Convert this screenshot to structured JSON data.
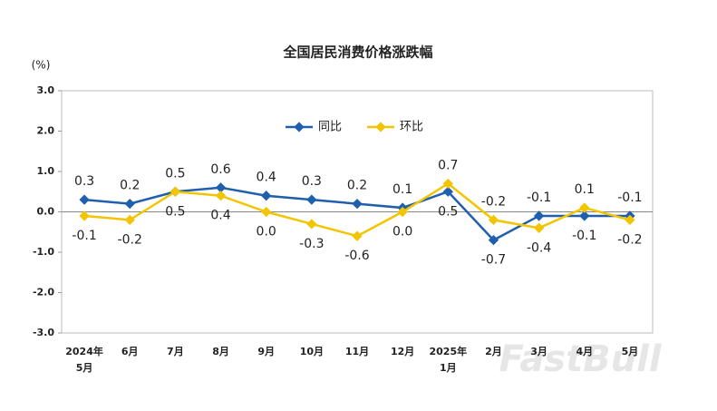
{
  "chart_data": {
    "type": "line",
    "title": "全国居民消费价格涨跌幅",
    "y_unit": "(%)",
    "categories": [
      "2024年\n5月",
      "6月",
      "7月",
      "8月",
      "9月",
      "10月",
      "11月",
      "12月",
      "2025年\n1月",
      "2月",
      "3月",
      "4月",
      "5月"
    ],
    "series": [
      {
        "name": "同比",
        "color": "#1f5fae",
        "values": [
          0.3,
          0.2,
          0.5,
          0.6,
          0.4,
          0.3,
          0.2,
          0.1,
          0.5,
          -0.7,
          -0.1,
          -0.1,
          -0.1
        ],
        "value_labels": [
          "0.3",
          "0.2",
          "0.5",
          "0.6",
          "0.4",
          "0.3",
          "0.2",
          "0.1",
          "0.5",
          "-0.7",
          "-0.1",
          "-0.1",
          "-0.1"
        ]
      },
      {
        "name": "环比",
        "color": "#f2c500",
        "values": [
          -0.1,
          -0.2,
          0.5,
          0.4,
          0,
          -0.3,
          -0.6,
          0,
          0.7,
          -0.2,
          -0.4,
          0.1,
          -0.2
        ],
        "value_labels": [
          "-0.1",
          "-0.2",
          "0.5",
          "0.4",
          "0.0",
          "-0.3",
          "-0.6",
          "0.0",
          "0.7",
          "-0.2",
          "-0.4",
          "0.1",
          "-0.2"
        ]
      }
    ],
    "ylim": [
      -3,
      3
    ],
    "yticks": [
      {
        "value": 3,
        "label": "3.0"
      },
      {
        "value": 2,
        "label": "2.0"
      },
      {
        "value": 1,
        "label": "1.0"
      },
      {
        "value": 0,
        "label": "0.0"
      },
      {
        "value": -1,
        "label": "-1.0"
      },
      {
        "value": -2,
        "label": "-2.0"
      },
      {
        "value": -3,
        "label": "-3.0"
      }
    ],
    "legend": "top",
    "watermark": "FastBull"
  }
}
